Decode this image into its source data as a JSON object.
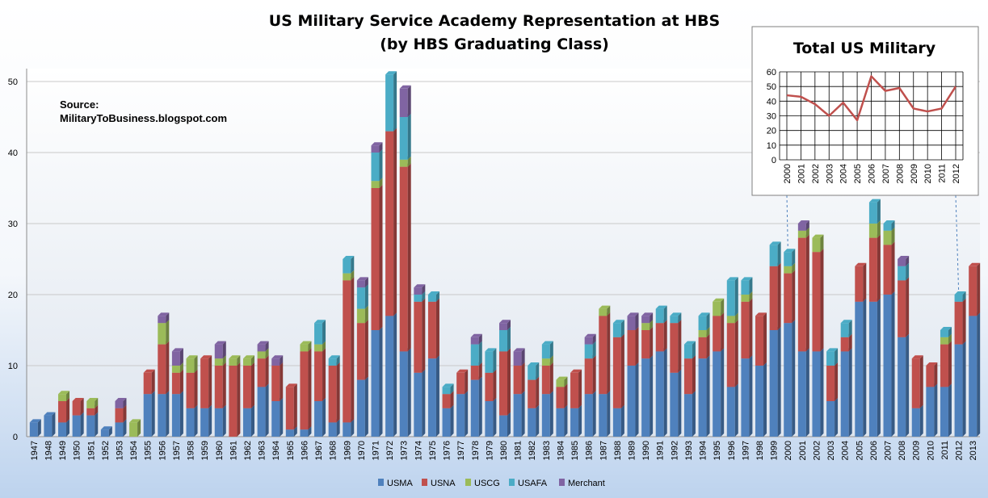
{
  "chart_data": [
    {
      "type": "bar",
      "stacked": true,
      "title": "US Military Service Academy Representation at HBS",
      "subtitle": "(by HBS Graduating Class)",
      "annotation": "Source:",
      "annotation_line2": "MilitaryToBusiness.blogspot.com",
      "ylim": [
        0,
        52
      ],
      "yticks": [
        0,
        10,
        20,
        30,
        40,
        50
      ],
      "grid": true,
      "legend_position": "bottom",
      "categories": [
        "1947",
        "1948",
        "1949",
        "1950",
        "1951",
        "1952",
        "1953",
        "1954",
        "1955",
        "1956",
        "1957",
        "1958",
        "1959",
        "1960",
        "1961",
        "1962",
        "1963",
        "1964",
        "1965",
        "1966",
        "1967",
        "1968",
        "1969",
        "1970",
        "1971",
        "1972",
        "1973",
        "1974",
        "1975",
        "1976",
        "1977",
        "1978",
        "1979",
        "1980",
        "1981",
        "1982",
        "1983",
        "1984",
        "1985",
        "1986",
        "1987",
        "1988",
        "1989",
        "1990",
        "1991",
        "1992",
        "1993",
        "1994",
        "1995",
        "1996",
        "1997",
        "1998",
        "1999",
        "2000",
        "2001",
        "2002",
        "2003",
        "2004",
        "2005",
        "2006",
        "2007",
        "2008",
        "2009",
        "2010",
        "2011",
        "2012",
        "2013"
      ],
      "series": [
        {
          "name": "USMA",
          "color": "#4f81bd",
          "values": [
            2,
            3,
            2,
            3,
            3,
            1,
            2,
            0,
            6,
            6,
            6,
            4,
            4,
            4,
            0,
            4,
            7,
            5,
            1,
            1,
            5,
            2,
            2,
            8,
            15,
            17,
            12,
            9,
            11,
            4,
            6,
            8,
            5,
            3,
            6,
            4,
            6,
            4,
            4,
            6,
            6,
            4,
            10,
            11,
            12,
            9,
            6,
            11,
            12,
            7,
            11,
            10,
            15,
            16,
            12,
            12,
            5,
            12,
            19,
            19,
            20,
            14,
            4,
            7,
            7,
            13,
            17
          ]
        },
        {
          "name": "USNA",
          "color": "#c0504d",
          "values": [
            0,
            0,
            3,
            2,
            1,
            0,
            2,
            0,
            3,
            7,
            3,
            5,
            7,
            6,
            10,
            6,
            4,
            5,
            6,
            11,
            7,
            8,
            20,
            8,
            20,
            26,
            26,
            10,
            8,
            2,
            3,
            2,
            4,
            9,
            4,
            4,
            4,
            3,
            5,
            5,
            11,
            10,
            5,
            4,
            4,
            7,
            5,
            3,
            5,
            9,
            8,
            7,
            9,
            7,
            16,
            14,
            5,
            2,
            5,
            9,
            7,
            8,
            7,
            3,
            6,
            6,
            7
          ]
        },
        {
          "name": "USCG",
          "color": "#9bbb59",
          "values": [
            0,
            0,
            1,
            0,
            1,
            0,
            0,
            2,
            0,
            3,
            1,
            2,
            0,
            1,
            1,
            1,
            1,
            0,
            0,
            1,
            1,
            0,
            1,
            2,
            1,
            0,
            1,
            0,
            0,
            0,
            0,
            0,
            0,
            0,
            0,
            0,
            1,
            1,
            0,
            0,
            1,
            0,
            0,
            1,
            0,
            0,
            0,
            1,
            2,
            1,
            1,
            0,
            0,
            1,
            1,
            2,
            0,
            0,
            0,
            2,
            2,
            0,
            0,
            0,
            1,
            0,
            0
          ]
        },
        {
          "name": "USAFA",
          "color": "#4bacc6",
          "values": [
            0,
            0,
            0,
            0,
            0,
            0,
            0,
            0,
            0,
            0,
            0,
            0,
            0,
            0,
            0,
            0,
            0,
            0,
            0,
            0,
            3,
            1,
            2,
            3,
            4,
            8,
            6,
            1,
            1,
            1,
            0,
            3,
            3,
            3,
            0,
            2,
            2,
            0,
            0,
            2,
            0,
            2,
            0,
            0,
            2,
            1,
            2,
            2,
            0,
            5,
            2,
            0,
            3,
            2,
            0,
            0,
            2,
            2,
            0,
            3,
            1,
            2,
            0,
            0,
            1,
            1,
            0
          ]
        },
        {
          "name": "Merchant",
          "color": "#8064a2",
          "values": [
            0,
            0,
            0,
            0,
            0,
            0,
            1,
            0,
            0,
            1,
            2,
            0,
            0,
            2,
            0,
            0,
            1,
            1,
            0,
            0,
            0,
            0,
            0,
            1,
            1,
            0,
            4,
            1,
            0,
            0,
            0,
            1,
            0,
            1,
            2,
            0,
            0,
            0,
            0,
            1,
            0,
            0,
            2,
            1,
            0,
            0,
            0,
            0,
            0,
            0,
            0,
            0,
            0,
            0,
            1,
            0,
            0,
            0,
            0,
            0,
            0,
            1,
            0,
            0,
            0,
            0,
            0
          ]
        }
      ]
    },
    {
      "type": "line",
      "title": "Total US Military",
      "ylim": [
        0,
        60
      ],
      "yticks": [
        0,
        10,
        20,
        30,
        40,
        50,
        60
      ],
      "grid": true,
      "categories": [
        "2000",
        "2001",
        "2002",
        "2003",
        "2004",
        "2005",
        "2006",
        "2007",
        "2008",
        "2009",
        "2010",
        "2011",
        "2012"
      ],
      "series": [
        {
          "name": "Total",
          "color": "#c0504d",
          "values": [
            44,
            43,
            38,
            30,
            39,
            27,
            57,
            47,
            49,
            35,
            33,
            35,
            50
          ]
        }
      ]
    }
  ]
}
